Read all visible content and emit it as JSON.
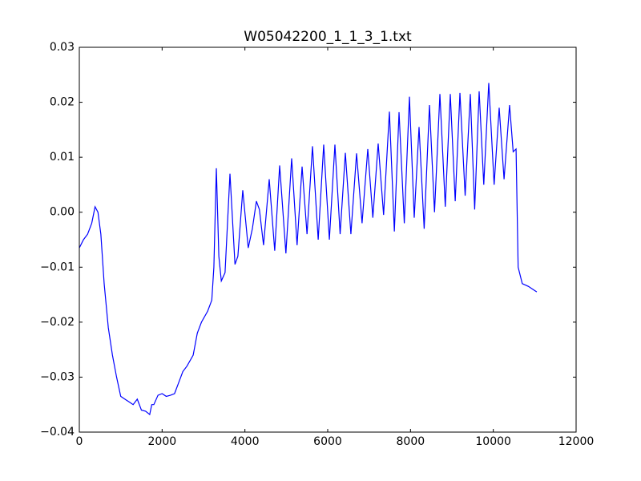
{
  "chart_data": {
    "type": "line",
    "title": "W05042200_1_1_3_1.txt",
    "x": [
      0,
      100,
      200,
      300,
      380,
      450,
      520,
      600,
      700,
      800,
      900,
      1000,
      1100,
      1200,
      1300,
      1400,
      1500,
      1600,
      1700,
      1750,
      1800,
      1900,
      2000,
      2100,
      2200,
      2300,
      2400,
      2500,
      2600,
      2750,
      2850,
      2950,
      3100,
      3200,
      3250,
      3310,
      3370,
      3430,
      3520,
      3639,
      3760,
      3830,
      3948,
      4080,
      4180,
      4277,
      4350,
      4450,
      4587,
      4720,
      4839,
      4990,
      5129,
      5260,
      5381,
      5500,
      5632,
      5770,
      5903,
      6040,
      6174,
      6300,
      6426,
      6560,
      6697,
      6830,
      6968,
      7090,
      7219,
      7350,
      7490,
      7610,
      7723,
      7850,
      7974,
      8090,
      8206,
      8330,
      8458,
      8580,
      8710,
      8840,
      8961,
      9080,
      9194,
      9320,
      9445,
      9550,
      9658,
      9770,
      9890,
      10020,
      10142,
      10260,
      10393,
      10480,
      10550,
      10600,
      10700,
      10850,
      10950,
      11050
    ],
    "series": [
      {
        "color": "#0000ff",
        "values": [
          -0.0065,
          -0.005,
          -0.004,
          -0.002,
          0.001,
          0.0,
          -0.004,
          -0.013,
          -0.021,
          -0.026,
          -0.03,
          -0.0335,
          -0.034,
          -0.0345,
          -0.035,
          -0.034,
          -0.036,
          -0.0362,
          -0.0368,
          -0.035,
          -0.035,
          -0.0333,
          -0.033,
          -0.0335,
          -0.0333,
          -0.033,
          -0.031,
          -0.029,
          -0.028,
          -0.026,
          -0.022,
          -0.02,
          -0.018,
          -0.016,
          -0.01,
          0.008,
          -0.008,
          -0.0125,
          -0.011,
          0.007,
          -0.0095,
          -0.008,
          0.004,
          -0.0065,
          -0.003,
          0.002,
          0.0005,
          -0.006,
          0.006,
          -0.007,
          0.0085,
          -0.0075,
          0.0098,
          -0.006,
          0.0083,
          -0.004,
          0.012,
          -0.005,
          0.0123,
          -0.005,
          0.0123,
          -0.004,
          0.0108,
          -0.004,
          0.0107,
          -0.002,
          0.0115,
          -0.001,
          0.0125,
          -0.0005,
          0.0183,
          -0.0035,
          0.0182,
          -0.002,
          0.021,
          -0.001,
          0.0155,
          -0.003,
          0.0195,
          0.0,
          0.0215,
          0.001,
          0.0215,
          0.002,
          0.0217,
          0.003,
          0.0215,
          0.0005,
          0.022,
          0.005,
          0.0235,
          0.005,
          0.019,
          0.006,
          0.0195,
          0.011,
          0.0115,
          -0.01,
          -0.013,
          -0.0135,
          -0.014,
          -0.0145
        ]
      }
    ],
    "xlim": [
      0,
      12000
    ],
    "xticks": [
      0,
      2000,
      4000,
      6000,
      8000,
      10000,
      12000
    ],
    "ylim": [
      -0.04,
      0.03
    ],
    "yticks": [
      {
        "value": -0.04,
        "label": "−0.04"
      },
      {
        "value": -0.03,
        "label": "−0.03"
      },
      {
        "value": -0.02,
        "label": "−0.02"
      },
      {
        "value": -0.01,
        "label": "−0.01"
      },
      {
        "value": 0,
        "label": "0.00"
      },
      0.01,
      0.02,
      0.03
    ]
  }
}
